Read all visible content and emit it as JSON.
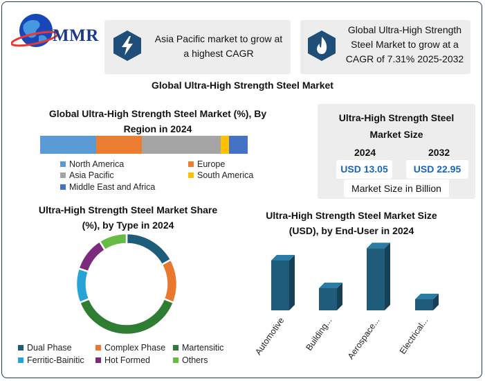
{
  "logo": {
    "text": "MMR"
  },
  "header_cards": [
    {
      "text_line1": "Asia Pacific market to grow at",
      "text_line2": "a highest CAGR",
      "icon": "lightning-icon"
    },
    {
      "text_line1": "Global Ultra-High Strength",
      "text_line2": "Steel Market to grow at a",
      "text_line3": "CAGR of 7.31% 2025-2032",
      "icon": "flame-icon"
    }
  ],
  "main_title": "Global Ultra-High Strength Steel Market",
  "market_size": {
    "title_line1": "Ultra-High Strength Steel",
    "title_line2": "Market Size",
    "year1": "2024",
    "year2": "2032",
    "value1": "USD 13.05",
    "value2": "USD 22.95",
    "footer": "Market Size in Billion",
    "accent_color": "#1565c0"
  },
  "chart_data": [
    {
      "type": "bar",
      "orientation": "horizontal-stacked",
      "title": "Global Ultra-High Strength Steel Market (%), By Region in 2024",
      "title_line1": "Global Ultra-High Strength Steel Market (%), By",
      "title_line2": "Region in 2024",
      "series": [
        {
          "name": "North America",
          "value": 27,
          "color": "#5b9bd5"
        },
        {
          "name": "Europe",
          "value": 22,
          "color": "#ed7d31"
        },
        {
          "name": "Asia Pacific",
          "value": 38,
          "color": "#a5a5a5"
        },
        {
          "name": "South America",
          "value": 4,
          "color": "#ffc000"
        },
        {
          "name": "Middle East and Africa",
          "value": 9,
          "color": "#4472c4"
        }
      ]
    },
    {
      "type": "pie",
      "style": "donut",
      "title": "Ultra-High Strength Steel Market Share (%), by Type in 2024",
      "title_line1": "Ultra-High Strength Steel Market Share",
      "title_line2": "(%), by Type in 2024",
      "slices": [
        {
          "name": "Dual Phase",
          "value": 17,
          "color": "#1f5c7a"
        },
        {
          "name": "Complex Phase",
          "value": 14,
          "color": "#e8782e"
        },
        {
          "name": "Martensitic",
          "value": 38,
          "color": "#2e7d32"
        },
        {
          "name": "Ferritic-Bainitic",
          "value": 11,
          "color": "#29a3d6"
        },
        {
          "name": "Hot Formed",
          "value": 11,
          "color": "#7b2a7c"
        },
        {
          "name": "Others",
          "value": 9,
          "color": "#66bb44"
        }
      ]
    },
    {
      "type": "bar",
      "style": "3d-column",
      "title": "Ultra-High Strength Steel Market Size (USD), by End-User in 2024",
      "title_line1": "Ultra-High Strength Steel Market Size",
      "title_line2": "(USD), by End-User in 2024",
      "categories": [
        "Automotive",
        "Building...",
        "Aerospace...",
        "Electrical..."
      ],
      "values": [
        4.5,
        2.0,
        5.6,
        1.0
      ],
      "ylim": [
        0,
        6
      ],
      "color": "#1f5c7a"
    }
  ]
}
